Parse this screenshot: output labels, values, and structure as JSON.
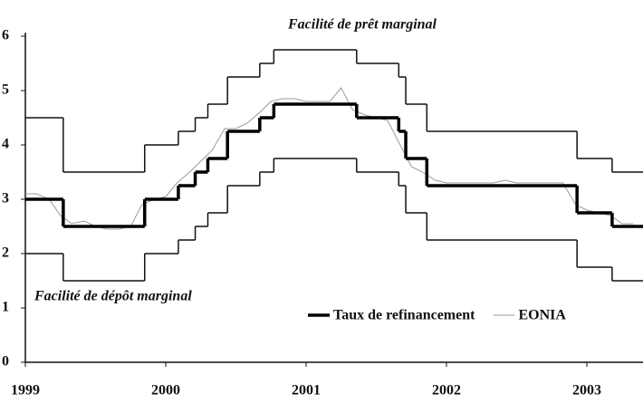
{
  "chart_data": {
    "type": "line",
    "xlim": [
      1999,
      2003.4
    ],
    "xticks": [
      1999,
      2000,
      2001,
      2002,
      2003
    ],
    "ylim": [
      0,
      6
    ],
    "yticks": [
      0,
      1,
      2,
      3,
      4,
      5,
      6
    ],
    "series": [
      {
        "name": "Facilité de prêt marginal",
        "color": "#111111",
        "step": true,
        "legend": false,
        "label_pos": "top",
        "x": [
          1999,
          1999.27,
          1999.85,
          2000.09,
          2000.21,
          2000.3,
          2000.44,
          2000.67,
          2000.77,
          2001.36,
          2001.66,
          2001.71,
          2001.86,
          2002.93,
          2003.18
        ],
        "values": [
          4.5,
          3.5,
          4.0,
          4.25,
          4.5,
          4.75,
          5.25,
          5.5,
          5.75,
          5.5,
          5.25,
          4.75,
          4.25,
          3.75,
          3.5
        ]
      },
      {
        "name": "Taux de refinancement",
        "color": "#000000",
        "step": true,
        "legend": true,
        "width": 3.5,
        "x": [
          1999,
          1999.27,
          1999.85,
          2000.09,
          2000.21,
          2000.3,
          2000.44,
          2000.67,
          2000.77,
          2001.36,
          2001.66,
          2001.71,
          2001.86,
          2002.93,
          2003.18
        ],
        "values": [
          3.0,
          2.5,
          3.0,
          3.25,
          3.5,
          3.75,
          4.25,
          4.5,
          4.75,
          4.5,
          4.25,
          3.75,
          3.25,
          2.75,
          2.5
        ]
      },
      {
        "name": "Facilité de dépôt marginal",
        "color": "#111111",
        "step": true,
        "legend": false,
        "label_pos": "bottom",
        "x": [
          1999,
          1999.27,
          1999.85,
          2000.09,
          2000.21,
          2000.3,
          2000.44,
          2000.67,
          2000.77,
          2001.36,
          2001.66,
          2001.71,
          2001.86,
          2002.93,
          2003.18
        ],
        "values": [
          2.0,
          1.5,
          2.0,
          2.25,
          2.5,
          2.75,
          3.25,
          3.5,
          3.75,
          3.5,
          3.25,
          2.75,
          2.25,
          1.75,
          1.5
        ]
      },
      {
        "name": "EONIA",
        "color": "#9a9a9a",
        "step": false,
        "legend": true,
        "width": 1,
        "x": [
          1999,
          1999.08,
          1999.17,
          1999.25,
          1999.33,
          1999.42,
          1999.5,
          1999.58,
          1999.67,
          1999.75,
          1999.83,
          1999.92,
          2000,
          2000.08,
          2000.17,
          2000.25,
          2000.33,
          2000.42,
          2000.5,
          2000.58,
          2000.67,
          2000.75,
          2000.83,
          2000.92,
          2001,
          2001.08,
          2001.17,
          2001.25,
          2001.33,
          2001.42,
          2001.5,
          2001.58,
          2001.67,
          2001.75,
          2001.83,
          2001.92,
          2002,
          2002.08,
          2002.17,
          2002.25,
          2002.33,
          2002.42,
          2002.5,
          2002.58,
          2002.67,
          2002.75,
          2002.83,
          2002.92,
          2003,
          2003.08,
          2003.17,
          2003.25,
          2003.33
        ],
        "values": [
          3.1,
          3.1,
          3.0,
          2.7,
          2.55,
          2.6,
          2.5,
          2.45,
          2.45,
          2.5,
          2.9,
          3.0,
          3.05,
          3.3,
          3.5,
          3.7,
          3.9,
          4.3,
          4.3,
          4.4,
          4.6,
          4.8,
          4.85,
          4.85,
          4.8,
          4.8,
          4.8,
          5.05,
          4.65,
          4.55,
          4.5,
          4.45,
          4.0,
          3.6,
          3.5,
          3.35,
          3.3,
          3.3,
          3.3,
          3.3,
          3.3,
          3.35,
          3.3,
          3.3,
          3.3,
          3.3,
          3.3,
          2.9,
          2.8,
          2.75,
          2.7,
          2.55,
          2.55
        ]
      }
    ]
  }
}
